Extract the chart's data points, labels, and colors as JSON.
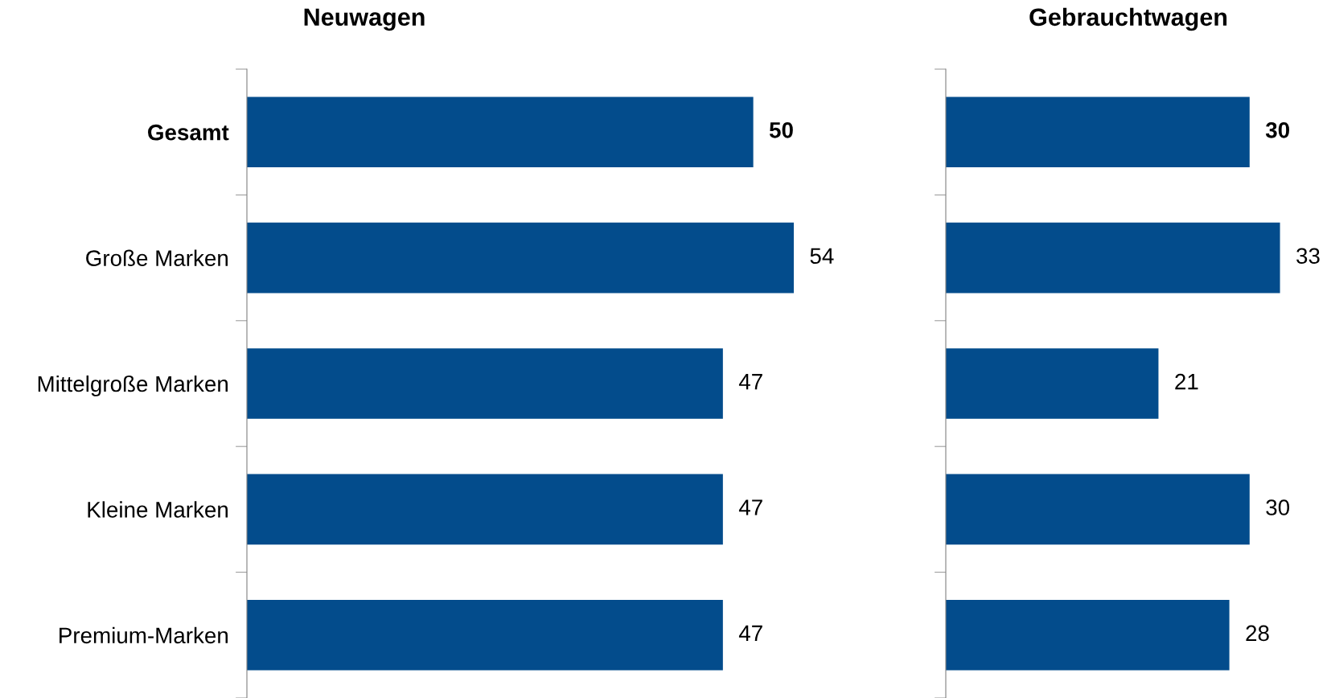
{
  "chart_data": [
    {
      "type": "bar",
      "orientation": "horizontal",
      "title": "Neuwagen",
      "categories": [
        "Gesamt",
        "Große Marken",
        "Mittelgroße Marken",
        "Kleine Marken",
        "Premium-Marken"
      ],
      "values": [
        50,
        54,
        47,
        47,
        47
      ],
      "color": "#034c8c",
      "data_labels": true,
      "tick_labels": "y"
    },
    {
      "type": "bar",
      "orientation": "horizontal",
      "title": "Gebrauchtwagen",
      "categories": [
        null,
        null,
        null,
        null,
        null
      ],
      "values": [
        30,
        33,
        21,
        30,
        28
      ],
      "color": "#034c8c",
      "data_labels": true,
      "tick_labels": false
    }
  ]
}
